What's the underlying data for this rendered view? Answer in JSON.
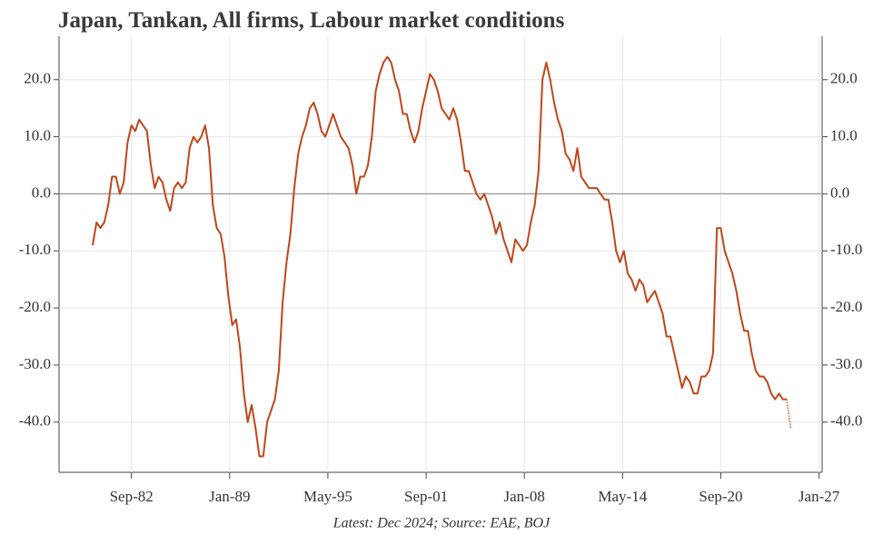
{
  "chart_data": {
    "type": "line",
    "title": "Japan, Tankan, All firms, Labour market conditions",
    "source": "Latest: Dec 2024; Source: EAE, BOJ",
    "x": [
      1980.167,
      1980.417,
      1980.667,
      1980.917,
      1981.167,
      1981.417,
      1981.667,
      1981.917,
      1982.167,
      1982.417,
      1982.667,
      1982.917,
      1983.167,
      1983.417,
      1983.667,
      1983.917,
      1984.167,
      1984.417,
      1984.667,
      1984.917,
      1985.167,
      1985.417,
      1985.667,
      1985.917,
      1986.167,
      1986.417,
      1986.667,
      1986.917,
      1987.167,
      1987.417,
      1987.667,
      1987.917,
      1988.167,
      1988.417,
      1988.667,
      1988.917,
      1989.167,
      1989.417,
      1989.667,
      1989.917,
      1990.167,
      1990.417,
      1990.667,
      1990.917,
      1991.167,
      1991.417,
      1991.667,
      1991.917,
      1992.167,
      1992.417,
      1992.667,
      1992.917,
      1993.167,
      1993.417,
      1993.667,
      1993.917,
      1994.167,
      1994.417,
      1994.667,
      1994.917,
      1995.167,
      1995.417,
      1995.667,
      1995.917,
      1996.167,
      1996.417,
      1996.667,
      1996.917,
      1997.167,
      1997.417,
      1997.667,
      1997.917,
      1998.167,
      1998.417,
      1998.667,
      1998.917,
      1999.167,
      1999.417,
      1999.667,
      1999.917,
      2000.167,
      2000.417,
      2000.667,
      2000.917,
      2001.167,
      2001.417,
      2001.667,
      2001.917,
      2002.167,
      2002.417,
      2002.667,
      2002.917,
      2003.167,
      2003.417,
      2003.667,
      2003.917,
      2004.167,
      2004.417,
      2004.667,
      2004.917,
      2005.167,
      2005.417,
      2005.667,
      2005.917,
      2006.167,
      2006.417,
      2006.667,
      2006.917,
      2007.167,
      2007.417,
      2007.667,
      2007.917,
      2008.167,
      2008.417,
      2008.667,
      2008.917,
      2009.167,
      2009.417,
      2009.667,
      2009.917,
      2010.167,
      2010.417,
      2010.667,
      2010.917,
      2011.167,
      2011.417,
      2011.667,
      2011.917,
      2012.167,
      2012.417,
      2012.667,
      2012.917,
      2013.167,
      2013.417,
      2013.667,
      2013.917,
      2014.167,
      2014.417,
      2014.667,
      2014.917,
      2015.167,
      2015.417,
      2015.667,
      2015.917,
      2016.167,
      2016.417,
      2016.667,
      2016.917,
      2017.167,
      2017.417,
      2017.667,
      2017.917,
      2018.167,
      2018.417,
      2018.667,
      2018.917,
      2019.167,
      2019.417,
      2019.667,
      2019.917,
      2020.167,
      2020.417,
      2020.667,
      2020.917,
      2021.167,
      2021.417,
      2021.667,
      2021.917,
      2022.167,
      2022.417,
      2022.667,
      2022.917,
      2023.167,
      2023.417,
      2023.667,
      2023.917,
      2024.167,
      2024.417,
      2024.667,
      2024.917
    ],
    "series": [
      {
        "color": "#c0461b",
        "style": "solid",
        "values": [
          -9,
          -5,
          -6,
          -5,
          -2,
          3,
          3,
          0,
          2,
          9,
          12,
          11,
          13,
          12,
          11,
          5,
          1,
          3,
          2,
          -1,
          -3,
          1,
          2,
          1,
          2,
          8,
          10,
          9,
          10,
          12,
          8,
          -2,
          -6,
          -7,
          -11,
          -18,
          -23,
          -22,
          -27,
          -35,
          -40,
          -37,
          -41,
          -46,
          -46,
          -40,
          -38,
          -36,
          -31,
          -19,
          -12,
          -7,
          1,
          7,
          10,
          12,
          15,
          16,
          14,
          11,
          10,
          12,
          14,
          12,
          10,
          9,
          8,
          5,
          0,
          3,
          3,
          5,
          10,
          18,
          21,
          23,
          24,
          23,
          20,
          18,
          14,
          14,
          11,
          9,
          11,
          15,
          18,
          21,
          20,
          18,
          15,
          14,
          13,
          15,
          13,
          9,
          4,
          4,
          2,
          0,
          -1,
          0,
          -2,
          -4,
          -7,
          -5,
          -8,
          -10,
          -12,
          -8,
          -9,
          -10,
          -9,
          -5,
          -2,
          4,
          20,
          23,
          20,
          16,
          13,
          11,
          7,
          6,
          4,
          8,
          3,
          2,
          1,
          1,
          1,
          0,
          -1,
          -1,
          -5,
          -10,
          -12,
          -10,
          -14,
          -15,
          -17,
          -15,
          -16,
          -19,
          -18,
          -17,
          -19,
          -21,
          -25,
          -25,
          -28,
          -31,
          -34,
          -32,
          -33,
          -35,
          -35,
          -32,
          -32,
          -31,
          -28,
          -6,
          -6,
          -10,
          -12,
          -14,
          -17,
          -21,
          -24,
          -24,
          -28,
          -31,
          -32,
          -32,
          -33,
          -35,
          -36,
          -35,
          -36,
          -36
        ]
      },
      {
        "color": "#d9744f",
        "style": "dotted",
        "x": [
          2024.917,
          2025.167
        ],
        "values": [
          -36,
          -41
        ]
      }
    ],
    "xlim": [
      1978.0,
      2027.2
    ],
    "xticks": [
      {
        "value": 1982.667,
        "label": "Sep-82"
      },
      {
        "value": 1989.0,
        "label": "Jan-89"
      },
      {
        "value": 1995.333,
        "label": "May-95"
      },
      {
        "value": 2001.667,
        "label": "Sep-01"
      },
      {
        "value": 2008.0,
        "label": "Jan-08"
      },
      {
        "value": 2014.333,
        "label": "May-14"
      },
      {
        "value": 2020.667,
        "label": "Sep-20"
      },
      {
        "value": 2027.0,
        "label": "Jan-27"
      }
    ],
    "ylim": [
      -48.8,
      27.6
    ],
    "yticks": [
      {
        "value": -40,
        "label": "-40.0"
      },
      {
        "value": -30,
        "label": "-30.0"
      },
      {
        "value": -20,
        "label": "-20.0"
      },
      {
        "value": -10,
        "label": "-10.0"
      },
      {
        "value": 0,
        "label": "0.0"
      },
      {
        "value": 10,
        "label": "10.0"
      },
      {
        "value": 20,
        "label": "20.0"
      }
    ],
    "grid": true,
    "hline": 0
  }
}
